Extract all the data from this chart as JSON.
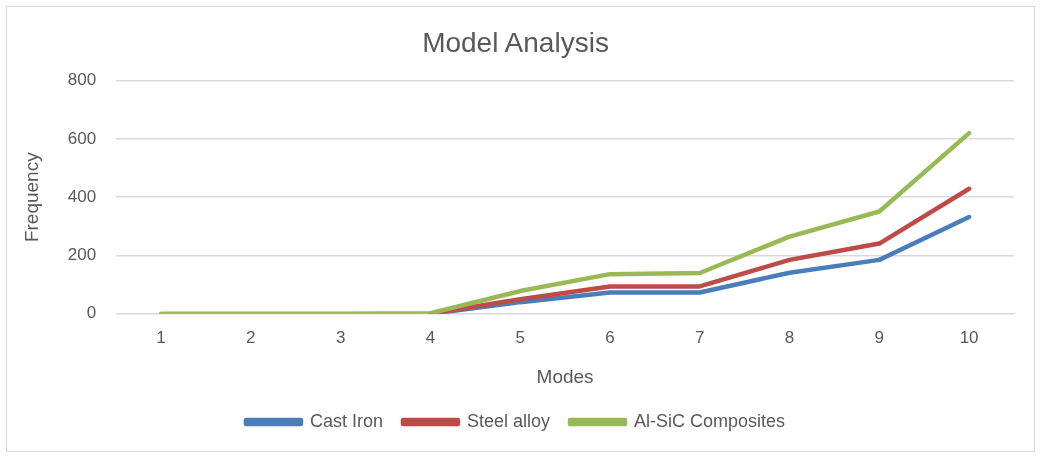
{
  "chart_data": {
    "type": "line",
    "title": "Model Analysis",
    "ylabel": "Frequency",
    "xlabel": "Modes",
    "categories": [
      "1",
      "2",
      "3",
      "4",
      "5",
      "6",
      "7",
      "8",
      "9",
      "10"
    ],
    "series": [
      {
        "name": "Cast Iron",
        "color": "#4a7ebb",
        "values": [
          null,
          null,
          null,
          0,
          40,
          73,
          73,
          141,
          185,
          332
        ]
      },
      {
        "name": "Steel alloy",
        "color": "#be4b48",
        "values": [
          null,
          null,
          null,
          0,
          50,
          94,
          94,
          185,
          241,
          429
        ]
      },
      {
        "name": "Al-SiC Composites",
        "color": "#98b954",
        "values": [
          0,
          0,
          0,
          2,
          78,
          136,
          140,
          265,
          351,
          620
        ]
      }
    ],
    "ylim": [
      0,
      800
    ],
    "yticks": [
      0,
      200,
      400,
      600,
      800
    ],
    "grid": "y",
    "legend": "bottom",
    "marker": "none",
    "line_style": "solid"
  }
}
